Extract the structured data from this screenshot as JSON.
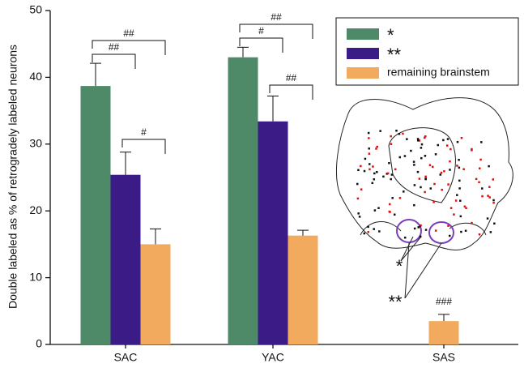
{
  "chart_data": {
    "type": "bar",
    "y_label": "Double labeled as % of retrogradely labeled neurons",
    "categories": [
      "SAC",
      "YAC",
      "SAS"
    ],
    "series": [
      {
        "name": "*",
        "color": "#4e8a68",
        "values": [
          38.7,
          43,
          null
        ],
        "errors": [
          3.4,
          1.5,
          null
        ]
      },
      {
        "name": "**",
        "color": "#3b1c86",
        "values": [
          25.4,
          33.4,
          null
        ],
        "errors": [
          3.4,
          3.8,
          null
        ]
      },
      {
        "name": "remaining brainstem",
        "color": "#f1aa5e",
        "values": [
          15,
          16.3,
          3.5
        ],
        "errors": [
          2.3,
          0.8,
          1
        ]
      }
    ],
    "ylim": [
      0,
      50
    ],
    "yticks": [
      0,
      10,
      20,
      30,
      40,
      50
    ],
    "annotations": [
      "##",
      "##",
      "#",
      "#",
      "##",
      "##",
      "###"
    ]
  }
}
